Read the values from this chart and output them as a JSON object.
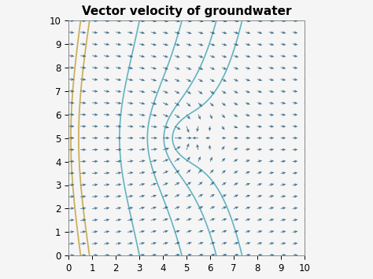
{
  "title": "Vector velocity of groundwater",
  "xlim": [
    0,
    10
  ],
  "ylim": [
    0,
    10
  ],
  "xticks": [
    0,
    1,
    2,
    3,
    4,
    5,
    6,
    7,
    8,
    9,
    10
  ],
  "yticks": [
    0,
    1,
    2,
    3,
    4,
    5,
    6,
    7,
    8,
    9,
    10
  ],
  "well_x": 5.0,
  "well_y": 5.0,
  "Q": 2.5,
  "U": 0.3,
  "grid_n": 21,
  "arrow_color": "#2a6080",
  "background_color": "#f5f5f5",
  "title_fontsize": 11,
  "title_fontweight": "bold",
  "teal_color": "#4aa8b8",
  "yellow_color": "#c8a84b"
}
